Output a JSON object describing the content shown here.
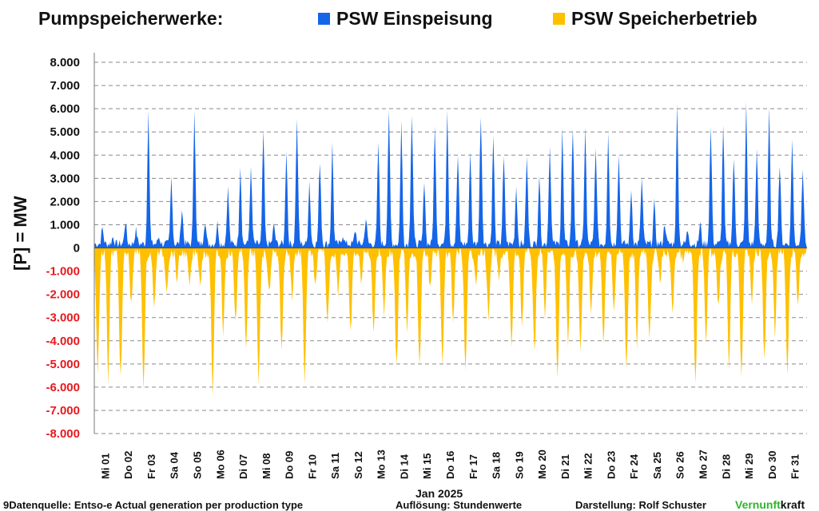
{
  "header": {
    "title": "Pumpspeicherwerke:",
    "legend": [
      {
        "label": "PSW Einspeisung",
        "color": "#1565e8"
      },
      {
        "label": "PSW Speicherbetrieb",
        "color": "#ffc000"
      }
    ]
  },
  "footer": {
    "source": "9Datenquelle: Entso-e  Actual generation per production type",
    "resolution": "Auflösung: Stundenwerte",
    "credit": "Darstellung:  Rolf Schuster",
    "brand_part1": "Vernunft",
    "brand_part2": "kraft"
  },
  "chart_data": {
    "type": "area",
    "title": "Pumpspeicherwerke:",
    "xlabel": "Jan 2025",
    "ylabel": "[P]  = MW",
    "ylim": [
      -8000,
      8000
    ],
    "ytick_step": 1000,
    "ytick_labels": [
      "8.000",
      "7.000",
      "6.000",
      "5.000",
      "4.000",
      "3.000",
      "2.000",
      "1.000",
      "0",
      "-1.000",
      "-2.000",
      "-3.000",
      "-4.000",
      "-5.000",
      "-6.000",
      "-7.000",
      "-8.000"
    ],
    "grid": true,
    "legend_position": "top",
    "resolution": "hourly",
    "x": [
      "Mi 01",
      "Do 02",
      "Fr 03",
      "Sa 04",
      "So 05",
      "Mo 06",
      "Di 07",
      "Mi 08",
      "Do 09",
      "Fr 10",
      "Sa 11",
      "So 12",
      "Mo 13",
      "Di 14",
      "Mi 15",
      "Do 16",
      "Fr 17",
      "Sa 18",
      "So 19",
      "Mo 20",
      "Di 21",
      "Mi 22",
      "Do 23",
      "Fr 24",
      "Sa 25",
      "So 26",
      "Mo 27",
      "Di 28",
      "Mi 29",
      "Do 30",
      "Fr 31"
    ],
    "series": [
      {
        "name": "PSW Einspeisung",
        "color": "#1565e8",
        "daily_peaks": [
          [
            0.7,
            0.3
          ],
          [
            1.0,
            0.6
          ],
          [
            5.9,
            0.3
          ],
          [
            2.9,
            1.5
          ],
          [
            5.9,
            1.0
          ],
          [
            0.9,
            2.4
          ],
          [
            3.4,
            3.2
          ],
          [
            4.9,
            0.8
          ],
          [
            4.1,
            5.3
          ],
          [
            2.7,
            3.6
          ],
          [
            4.3,
            0.4
          ],
          [
            0.6,
            1.1
          ],
          [
            4.4,
            5.6
          ],
          [
            5.3,
            5.6
          ],
          [
            2.8,
            5.0
          ],
          [
            5.9,
            3.8
          ],
          [
            4.1,
            5.6
          ],
          [
            4.7,
            3.7
          ],
          [
            2.5,
            3.7
          ],
          [
            3.0,
            4.2
          ],
          [
            5.0,
            5.0
          ],
          [
            5.1,
            4.1
          ],
          [
            4.9,
            3.8
          ],
          [
            2.4,
            2.8
          ],
          [
            1.8,
            0.9
          ],
          [
            6.0,
            0.6
          ],
          [
            0.9,
            5.0
          ],
          [
            5.2,
            3.7
          ],
          [
            6.0,
            4.0
          ],
          [
            5.8,
            3.4
          ],
          [
            4.6,
            3.3
          ]
        ]
      },
      {
        "name": "PSW Speicherbetrieb",
        "color": "#ffc000",
        "daily_troughs": [
          [
            -5.0,
            -5.5
          ],
          [
            -5.5,
            -2.3
          ],
          [
            -5.7,
            -2.5
          ],
          [
            -1.5,
            -1.2
          ],
          [
            -1.4,
            -1.3
          ],
          [
            -6.0,
            -3.5
          ],
          [
            -2.9,
            -4.3
          ],
          [
            -5.6,
            -1.8
          ],
          [
            -4.1,
            -1.9
          ],
          [
            -5.5,
            -1.5
          ],
          [
            -3.0,
            -1.7
          ],
          [
            -3.5,
            -1.2
          ],
          [
            -3.3,
            -2.6
          ],
          [
            -5.0,
            -3.4
          ],
          [
            -5.0,
            -1.5
          ],
          [
            -4.9,
            -3.1
          ],
          [
            -5.2,
            -1.2
          ],
          [
            -2.8,
            -1.2
          ],
          [
            -4.0,
            -3.2
          ],
          [
            -4.4,
            -2.7
          ],
          [
            -5.5,
            -4.1
          ],
          [
            -4.2,
            -2.8
          ],
          [
            -3.9,
            -2.5
          ],
          [
            -5.1,
            -4.0
          ],
          [
            -3.8,
            -1.3
          ],
          [
            -2.5,
            -0.3
          ],
          [
            -5.8,
            -4.1
          ],
          [
            -2.2,
            -5.0
          ],
          [
            -5.3,
            -2.1
          ],
          [
            -4.6,
            -3.5
          ],
          [
            -5.3,
            -2.3
          ]
        ]
      }
    ]
  }
}
